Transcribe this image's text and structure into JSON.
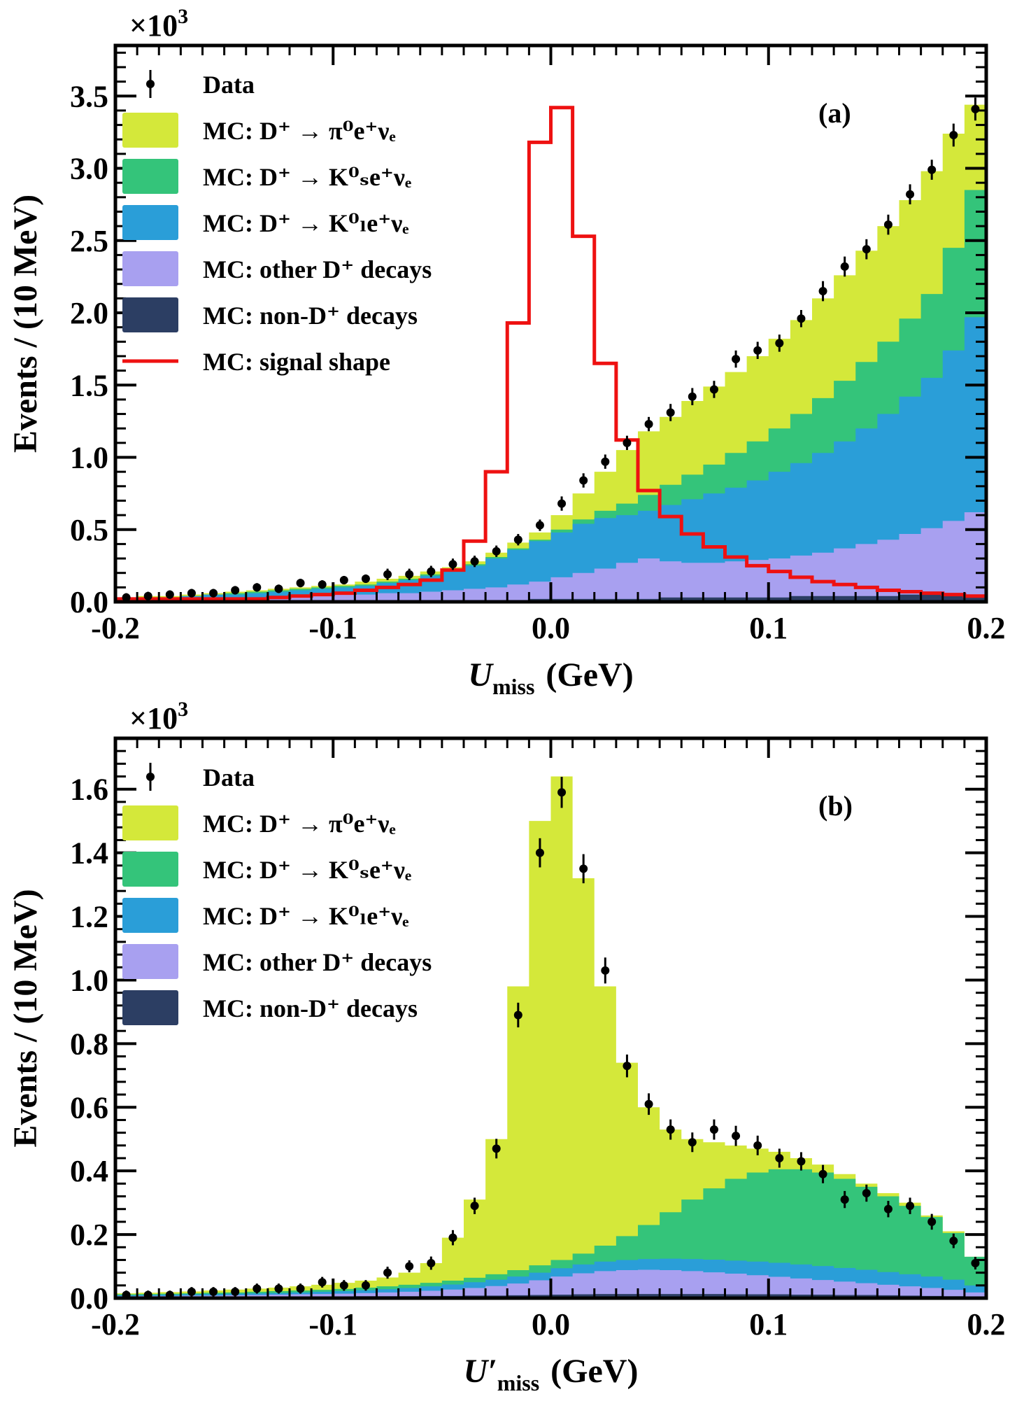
{
  "figure": {
    "colors": {
      "pi0": "#d4e83a",
      "ks": "#34c47a",
      "kl": "#2a9ed8",
      "other": "#a8a0f0",
      "nond": "#2c3e63",
      "signal": "#ee1111",
      "data": "#000000"
    }
  },
  "chart_data": [
    {
      "type": "area",
      "panel_label": "(a)",
      "multiplier": "×10",
      "multiplier_exp": "3",
      "xlabel_main": "U",
      "xlabel_sub": "miss",
      "xlabel_prime": "",
      "xlabel_unit": "(GeV)",
      "ylabel": "Events / (10 MeV)",
      "xlim": [
        -0.2,
        0.2
      ],
      "ylim": [
        0,
        3.85
      ],
      "xticks": [
        -0.2,
        -0.1,
        0.0,
        0.1,
        0.2
      ],
      "xtick_labels": [
        "-0.2",
        "-0.1",
        "0.0",
        "0.1",
        "0.2"
      ],
      "yticks": [
        0.0,
        0.5,
        1.0,
        1.5,
        2.0,
        2.5,
        3.0,
        3.5
      ],
      "ytick_labels": [
        "0.0",
        "0.5",
        "1.0",
        "1.5",
        "2.0",
        "2.5",
        "3.0",
        "3.5"
      ],
      "legend": [
        {
          "key": "data",
          "kind": "marker",
          "text": "Data"
        },
        {
          "key": "pi0",
          "kind": "box",
          "text": "MC: D⁺ → π⁰e⁺νₑ"
        },
        {
          "key": "ks",
          "kind": "box",
          "text": "MC: D⁺ → K⁰ₛe⁺νₑ"
        },
        {
          "key": "kl",
          "kind": "box",
          "text": "MC: D⁺ → K⁰ₗe⁺νₑ"
        },
        {
          "key": "other",
          "kind": "box",
          "text": "MC: other D⁺ decays"
        },
        {
          "key": "nond",
          "kind": "box",
          "text": "MC: non-D⁺ decays"
        },
        {
          "key": "signal",
          "kind": "line",
          "text": "MC: signal shape"
        }
      ],
      "bin_edges": [
        -0.2,
        -0.19,
        -0.18,
        -0.17,
        -0.16,
        -0.15,
        -0.14,
        -0.13,
        -0.12,
        -0.11,
        -0.1,
        -0.09,
        -0.08,
        -0.07,
        -0.06,
        -0.05,
        -0.04,
        -0.03,
        -0.02,
        -0.01,
        0.0,
        0.01,
        0.02,
        0.03,
        0.04,
        0.05,
        0.06,
        0.07,
        0.08,
        0.09,
        0.1,
        0.11,
        0.12,
        0.13,
        0.14,
        0.15,
        0.16,
        0.17,
        0.18,
        0.19,
        0.2
      ],
      "stack_order": [
        "nond",
        "other",
        "kl",
        "ks",
        "pi0"
      ],
      "stack_cumulative": {
        "nond": [
          0.01,
          0.01,
          0.01,
          0.01,
          0.01,
          0.01,
          0.01,
          0.01,
          0.01,
          0.01,
          0.01,
          0.01,
          0.01,
          0.01,
          0.01,
          0.01,
          0.01,
          0.01,
          0.01,
          0.02,
          0.02,
          0.02,
          0.02,
          0.02,
          0.02,
          0.03,
          0.03,
          0.03,
          0.03,
          0.03,
          0.03,
          0.04,
          0.04,
          0.04,
          0.04,
          0.04,
          0.05,
          0.05,
          0.05,
          0.05
        ],
        "other": [
          0.01,
          0.01,
          0.02,
          0.02,
          0.02,
          0.03,
          0.03,
          0.03,
          0.04,
          0.04,
          0.05,
          0.05,
          0.06,
          0.06,
          0.07,
          0.08,
          0.09,
          0.1,
          0.12,
          0.14,
          0.17,
          0.2,
          0.23,
          0.27,
          0.3,
          0.28,
          0.27,
          0.27,
          0.28,
          0.29,
          0.3,
          0.32,
          0.34,
          0.37,
          0.4,
          0.43,
          0.47,
          0.51,
          0.56,
          0.62
        ],
        "kl": [
          0.02,
          0.03,
          0.03,
          0.04,
          0.05,
          0.05,
          0.06,
          0.07,
          0.08,
          0.09,
          0.1,
          0.11,
          0.13,
          0.15,
          0.18,
          0.21,
          0.25,
          0.3,
          0.36,
          0.42,
          0.48,
          0.54,
          0.58,
          0.6,
          0.63,
          0.67,
          0.71,
          0.75,
          0.79,
          0.84,
          0.9,
          0.96,
          1.03,
          1.11,
          1.2,
          1.3,
          1.42,
          1.55,
          1.74,
          1.97
        ],
        "ks": [
          0.02,
          0.03,
          0.03,
          0.04,
          0.05,
          0.06,
          0.07,
          0.08,
          0.09,
          0.1,
          0.11,
          0.12,
          0.14,
          0.16,
          0.19,
          0.22,
          0.26,
          0.31,
          0.37,
          0.43,
          0.5,
          0.57,
          0.63,
          0.68,
          0.74,
          0.81,
          0.88,
          0.95,
          1.03,
          1.11,
          1.2,
          1.3,
          1.41,
          1.53,
          1.66,
          1.8,
          1.96,
          2.13,
          2.45,
          2.85
        ],
        "pi0": [
          0.03,
          0.04,
          0.04,
          0.05,
          0.06,
          0.07,
          0.08,
          0.09,
          0.1,
          0.11,
          0.12,
          0.14,
          0.16,
          0.18,
          0.21,
          0.24,
          0.28,
          0.34,
          0.41,
          0.48,
          0.6,
          0.75,
          0.9,
          1.05,
          1.18,
          1.28,
          1.39,
          1.49,
          1.59,
          1.7,
          1.82,
          1.95,
          2.1,
          2.26,
          2.43,
          2.6,
          2.78,
          2.98,
          3.24,
          3.44
        ]
      },
      "signal_shape": [
        0.02,
        0.02,
        0.02,
        0.02,
        0.02,
        0.02,
        0.02,
        0.03,
        0.04,
        0.05,
        0.06,
        0.08,
        0.1,
        0.12,
        0.15,
        0.22,
        0.42,
        0.9,
        1.93,
        3.18,
        3.42,
        2.53,
        1.65,
        1.12,
        0.77,
        0.59,
        0.47,
        0.38,
        0.31,
        0.25,
        0.21,
        0.17,
        0.14,
        0.12,
        0.1,
        0.08,
        0.07,
        0.06,
        0.05,
        0.04
      ],
      "data_points": {
        "x": [
          -0.195,
          -0.185,
          -0.175,
          -0.165,
          -0.155,
          -0.145,
          -0.135,
          -0.125,
          -0.115,
          -0.105,
          -0.095,
          -0.085,
          -0.075,
          -0.065,
          -0.055,
          -0.045,
          -0.035,
          -0.025,
          -0.015,
          -0.005,
          0.005,
          0.015,
          0.025,
          0.035,
          0.045,
          0.055,
          0.065,
          0.075,
          0.085,
          0.095,
          0.105,
          0.115,
          0.125,
          0.135,
          0.145,
          0.155,
          0.165,
          0.175,
          0.185,
          0.195
        ],
        "y": [
          0.03,
          0.04,
          0.05,
          0.06,
          0.06,
          0.08,
          0.1,
          0.09,
          0.13,
          0.12,
          0.15,
          0.16,
          0.19,
          0.19,
          0.21,
          0.26,
          0.28,
          0.35,
          0.43,
          0.53,
          0.68,
          0.84,
          0.97,
          1.1,
          1.23,
          1.31,
          1.42,
          1.47,
          1.68,
          1.74,
          1.79,
          1.96,
          2.15,
          2.32,
          2.44,
          2.61,
          2.82,
          2.99,
          3.23,
          3.41
        ],
        "err": [
          0.01,
          0.01,
          0.01,
          0.01,
          0.01,
          0.01,
          0.01,
          0.01,
          0.01,
          0.01,
          0.01,
          0.01,
          0.02,
          0.02,
          0.02,
          0.02,
          0.02,
          0.02,
          0.02,
          0.02,
          0.03,
          0.03,
          0.03,
          0.03,
          0.03,
          0.04,
          0.04,
          0.04,
          0.04,
          0.04,
          0.04,
          0.04,
          0.05,
          0.05,
          0.05,
          0.05,
          0.05,
          0.05,
          0.06,
          0.06
        ]
      }
    },
    {
      "type": "area",
      "panel_label": "(b)",
      "multiplier": "×10",
      "multiplier_exp": "3",
      "xlabel_main": "U",
      "xlabel_sub": "miss",
      "xlabel_prime": "′",
      "xlabel_unit": "(GeV)",
      "ylabel": "Events / (10 MeV)",
      "xlim": [
        -0.2,
        0.2
      ],
      "ylim": [
        0,
        1.76
      ],
      "xticks": [
        -0.2,
        -0.1,
        0.0,
        0.1,
        0.2
      ],
      "xtick_labels": [
        "-0.2",
        "-0.1",
        "0.0",
        "0.1",
        "0.2"
      ],
      "yticks": [
        0.0,
        0.2,
        0.4,
        0.6,
        0.8,
        1.0,
        1.2,
        1.4,
        1.6
      ],
      "ytick_labels": [
        "0.0",
        "0.2",
        "0.4",
        "0.6",
        "0.8",
        "1.0",
        "1.2",
        "1.4",
        "1.6"
      ],
      "legend": [
        {
          "key": "data",
          "kind": "marker",
          "text": "Data"
        },
        {
          "key": "pi0",
          "kind": "box",
          "text": "MC: D⁺ → π⁰e⁺νₑ"
        },
        {
          "key": "ks",
          "kind": "box",
          "text": "MC: D⁺ → K⁰ₛe⁺νₑ"
        },
        {
          "key": "kl",
          "kind": "box",
          "text": "MC: D⁺ → K⁰ₗe⁺νₑ"
        },
        {
          "key": "other",
          "kind": "box",
          "text": "MC: other D⁺ decays"
        },
        {
          "key": "nond",
          "kind": "box",
          "text": "MC: non-D⁺ decays"
        }
      ],
      "bin_edges": [
        -0.2,
        -0.19,
        -0.18,
        -0.17,
        -0.16,
        -0.15,
        -0.14,
        -0.13,
        -0.12,
        -0.11,
        -0.1,
        -0.09,
        -0.08,
        -0.07,
        -0.06,
        -0.05,
        -0.04,
        -0.03,
        -0.02,
        -0.01,
        0.0,
        0.01,
        0.02,
        0.03,
        0.04,
        0.05,
        0.06,
        0.07,
        0.08,
        0.09,
        0.1,
        0.11,
        0.12,
        0.13,
        0.14,
        0.15,
        0.16,
        0.17,
        0.18,
        0.19,
        0.2
      ],
      "stack_order": [
        "nond",
        "other",
        "kl",
        "ks",
        "pi0"
      ],
      "stack_cumulative": {
        "nond": [
          0.003,
          0.003,
          0.003,
          0.003,
          0.004,
          0.004,
          0.004,
          0.004,
          0.005,
          0.005,
          0.005,
          0.006,
          0.006,
          0.006,
          0.007,
          0.007,
          0.008,
          0.008,
          0.009,
          0.01,
          0.011,
          0.012,
          0.013,
          0.013,
          0.013,
          0.013,
          0.013,
          0.013,
          0.012,
          0.012,
          0.012,
          0.011,
          0.011,
          0.01,
          0.01,
          0.009,
          0.008,
          0.007,
          0.006,
          0.005
        ],
        "other": [
          0.006,
          0.007,
          0.007,
          0.008,
          0.008,
          0.009,
          0.01,
          0.011,
          0.012,
          0.013,
          0.014,
          0.016,
          0.018,
          0.02,
          0.023,
          0.027,
          0.032,
          0.038,
          0.046,
          0.056,
          0.068,
          0.078,
          0.085,
          0.088,
          0.089,
          0.088,
          0.085,
          0.081,
          0.077,
          0.072,
          0.067,
          0.062,
          0.057,
          0.052,
          0.047,
          0.042,
          0.037,
          0.032,
          0.026,
          0.018
        ],
        "kl": [
          0.009,
          0.01,
          0.011,
          0.012,
          0.013,
          0.014,
          0.015,
          0.016,
          0.018,
          0.02,
          0.022,
          0.025,
          0.028,
          0.032,
          0.037,
          0.043,
          0.05,
          0.058,
          0.068,
          0.08,
          0.094,
          0.106,
          0.115,
          0.12,
          0.123,
          0.124,
          0.123,
          0.121,
          0.118,
          0.115,
          0.111,
          0.106,
          0.101,
          0.095,
          0.089,
          0.082,
          0.075,
          0.068,
          0.058,
          0.04
        ],
        "ks": [
          0.012,
          0.013,
          0.014,
          0.015,
          0.017,
          0.018,
          0.02,
          0.022,
          0.024,
          0.026,
          0.029,
          0.033,
          0.037,
          0.042,
          0.048,
          0.055,
          0.064,
          0.075,
          0.088,
          0.103,
          0.12,
          0.14,
          0.165,
          0.195,
          0.23,
          0.27,
          0.31,
          0.345,
          0.375,
          0.395,
          0.405,
          0.405,
          0.395,
          0.375,
          0.35,
          0.32,
          0.29,
          0.255,
          0.205,
          0.13
        ],
        "pi0": [
          0.015,
          0.017,
          0.019,
          0.021,
          0.024,
          0.027,
          0.03,
          0.033,
          0.037,
          0.042,
          0.048,
          0.055,
          0.065,
          0.08,
          0.11,
          0.19,
          0.31,
          0.5,
          0.98,
          1.5,
          1.64,
          1.32,
          0.98,
          0.74,
          0.6,
          0.53,
          0.5,
          0.49,
          0.48,
          0.47,
          0.46,
          0.44,
          0.42,
          0.39,
          0.36,
          0.33,
          0.3,
          0.26,
          0.21,
          0.13
        ]
      },
      "data_points": {
        "x": [
          -0.195,
          -0.185,
          -0.175,
          -0.165,
          -0.155,
          -0.145,
          -0.135,
          -0.125,
          -0.115,
          -0.105,
          -0.095,
          -0.085,
          -0.075,
          -0.065,
          -0.055,
          -0.045,
          -0.035,
          -0.025,
          -0.015,
          -0.005,
          0.005,
          0.015,
          0.025,
          0.035,
          0.045,
          0.055,
          0.065,
          0.075,
          0.085,
          0.095,
          0.105,
          0.115,
          0.125,
          0.135,
          0.145,
          0.155,
          0.165,
          0.175,
          0.185,
          0.195
        ],
        "y": [
          0.01,
          0.01,
          0.01,
          0.02,
          0.02,
          0.02,
          0.03,
          0.03,
          0.03,
          0.05,
          0.04,
          0.04,
          0.08,
          0.1,
          0.11,
          0.19,
          0.29,
          0.47,
          0.89,
          1.4,
          1.59,
          1.35,
          1.03,
          0.73,
          0.61,
          0.53,
          0.49,
          0.53,
          0.51,
          0.48,
          0.44,
          0.43,
          0.39,
          0.31,
          0.33,
          0.28,
          0.29,
          0.24,
          0.18,
          0.11
        ],
        "err": [
          0.005,
          0.005,
          0.005,
          0.006,
          0.006,
          0.006,
          0.007,
          0.007,
          0.007,
          0.008,
          0.008,
          0.008,
          0.01,
          0.01,
          0.012,
          0.015,
          0.017,
          0.022,
          0.03,
          0.037,
          0.04,
          0.037,
          0.032,
          0.027,
          0.025,
          0.023,
          0.022,
          0.023,
          0.023,
          0.022,
          0.021,
          0.02,
          0.02,
          0.018,
          0.018,
          0.017,
          0.017,
          0.016,
          0.014,
          0.011
        ]
      }
    }
  ]
}
